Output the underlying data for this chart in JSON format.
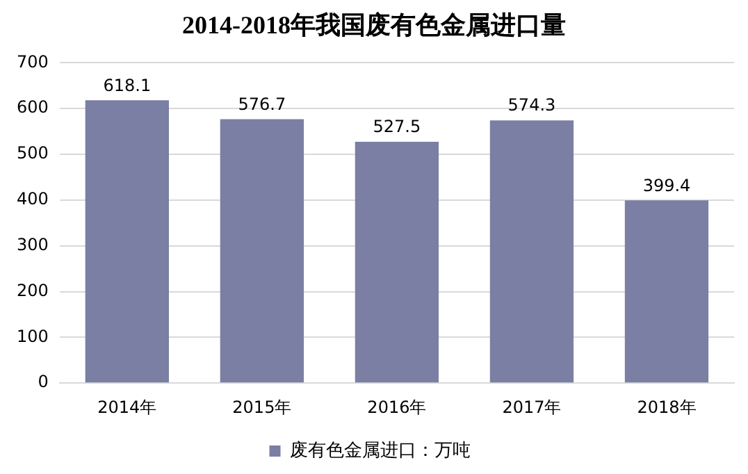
{
  "chart_data": {
    "type": "bar",
    "title": "2014-2018年我国废有色金属进口量",
    "categories": [
      "2014年",
      "2015年",
      "2016年",
      "2017年",
      "2018年"
    ],
    "series": [
      {
        "name": "废有色金属进口：万吨",
        "color": "#7b7fa3",
        "values": [
          618.1,
          576.7,
          527.5,
          574.3,
          399.4
        ]
      }
    ],
    "ylim": [
      0,
      700
    ],
    "yticks": [
      0,
      100,
      200,
      300,
      400,
      500,
      600,
      700
    ],
    "grid": "y",
    "legend": "bottom",
    "data_labels": true
  }
}
